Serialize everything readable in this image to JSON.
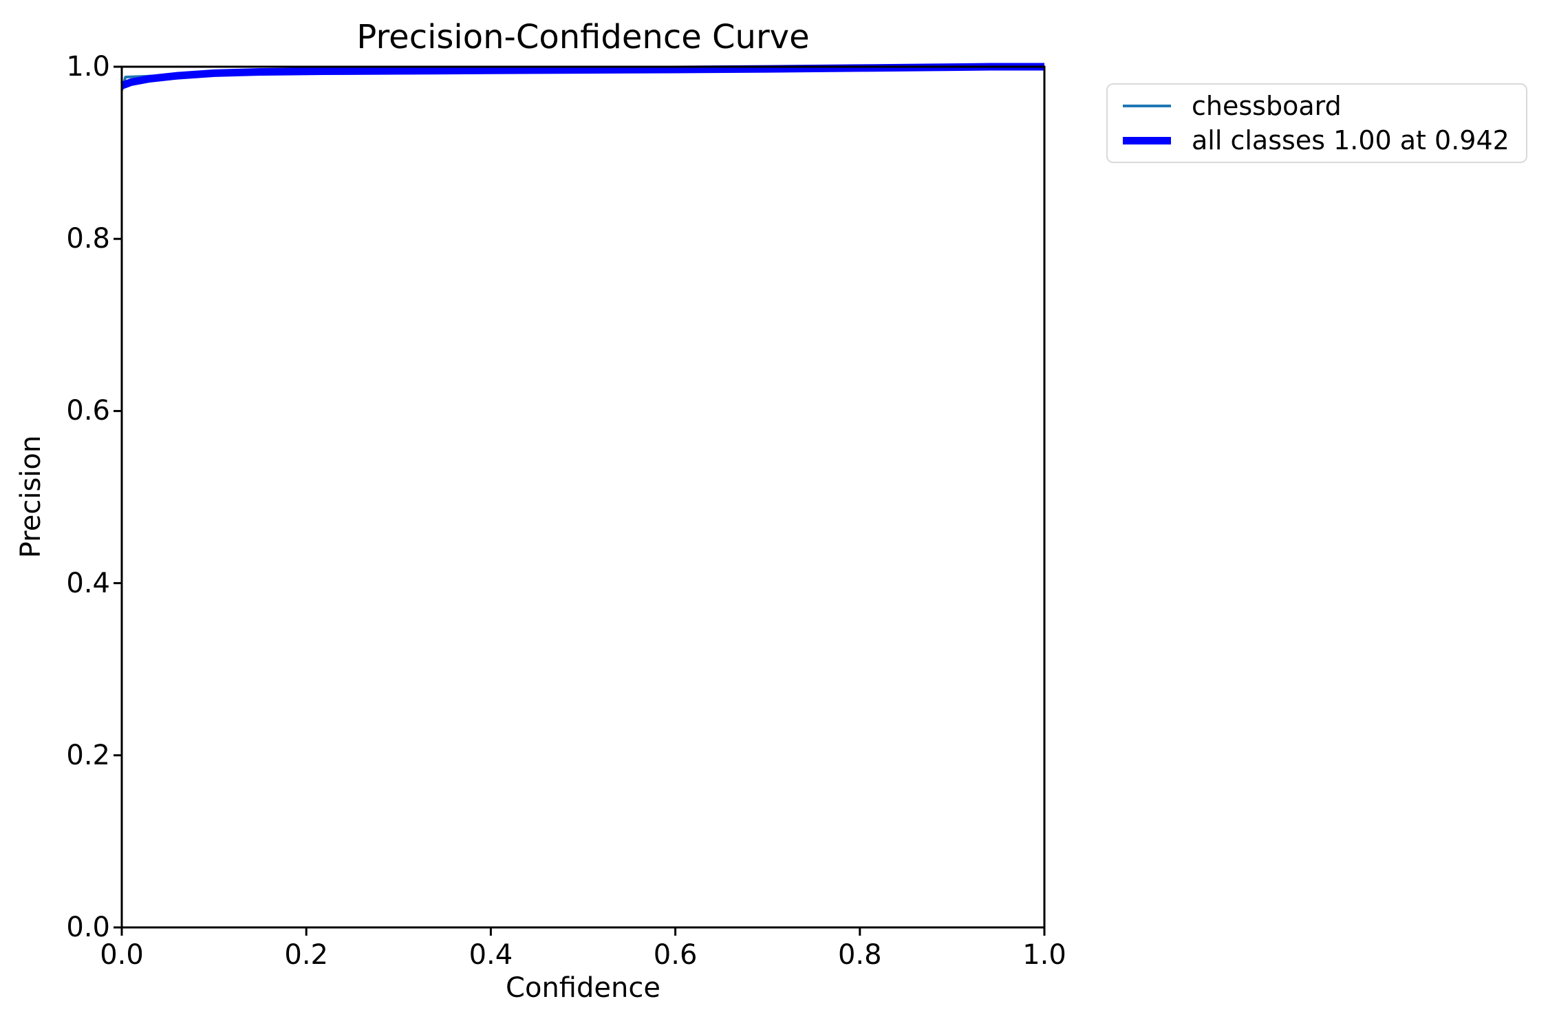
{
  "chart_data": {
    "type": "line",
    "title": "Precision-Confidence Curve",
    "xlabel": "Confidence",
    "ylabel": "Precision",
    "xlim": [
      0.0,
      1.0
    ],
    "ylim": [
      0.0,
      1.0
    ],
    "x_ticks": [
      "0.0",
      "0.2",
      "0.4",
      "0.6",
      "0.8",
      "1.0"
    ],
    "y_ticks": [
      "0.0",
      "0.2",
      "0.4",
      "0.6",
      "0.8",
      "1.0"
    ],
    "grid": false,
    "legend_position": "outside-upper-right",
    "series": [
      {
        "name": "chessboard",
        "color": "#1f77b4",
        "line_width": 4,
        "points": [
          [
            0.0,
            0.9725
          ],
          [
            0.004,
            0.988
          ],
          [
            0.03,
            0.989
          ],
          [
            0.06,
            0.9905
          ],
          [
            0.1,
            0.9928
          ],
          [
            0.15,
            0.994
          ],
          [
            0.22,
            0.9948
          ],
          [
            0.3,
            0.9952
          ],
          [
            0.4,
            0.9958
          ],
          [
            0.5,
            0.9963
          ],
          [
            0.6,
            0.9968
          ],
          [
            0.7,
            0.9975
          ],
          [
            0.8,
            0.9985
          ],
          [
            0.88,
            0.9993
          ],
          [
            0.942,
            1.0
          ],
          [
            1.0,
            1.0
          ]
        ]
      },
      {
        "name": "all classes 1.00 at 0.942",
        "color": "#0000ff",
        "line_width": 11,
        "points": [
          [
            0.0,
            0.978
          ],
          [
            0.01,
            0.982
          ],
          [
            0.03,
            0.986
          ],
          [
            0.06,
            0.9895
          ],
          [
            0.1,
            0.9925
          ],
          [
            0.15,
            0.994
          ],
          [
            0.22,
            0.9948
          ],
          [
            0.3,
            0.9952
          ],
          [
            0.4,
            0.9958
          ],
          [
            0.5,
            0.9963
          ],
          [
            0.6,
            0.9968
          ],
          [
            0.7,
            0.9975
          ],
          [
            0.8,
            0.9985
          ],
          [
            0.88,
            0.9993
          ],
          [
            0.942,
            1.0
          ],
          [
            1.0,
            1.0
          ]
        ]
      }
    ],
    "best_metric": {
      "precision": "1.00",
      "confidence": "0.942"
    }
  },
  "colors": {
    "background": "#ffffff",
    "spine": "#000000",
    "text": "#000000",
    "legend_border": "#d9d9d9"
  }
}
